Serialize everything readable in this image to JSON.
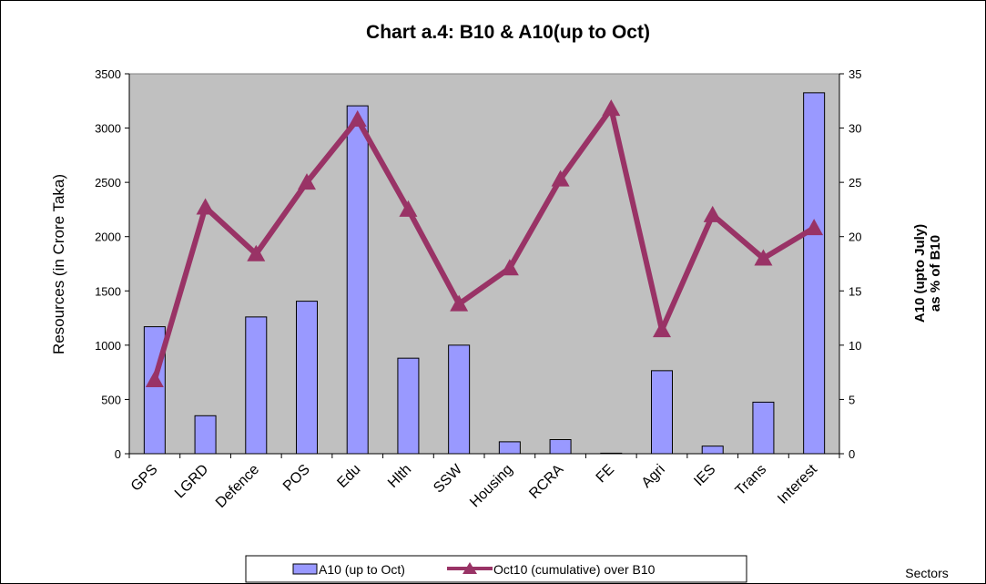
{
  "chart_data": {
    "type": "bar",
    "title": "Chart a.4: B10 & A10(up to Oct)",
    "xlabel": "Sectors",
    "ylabel": "Resources (in Crore Taka)",
    "y2label_line1": "A10 (upto July)",
    "y2label_line2": "as % of B10",
    "categories": [
      "GPS",
      "LGRD",
      "Defence",
      "POS",
      "Edu",
      "Hlth",
      "SSW",
      "Housing",
      "RCRA",
      "FE",
      "Agri",
      "IES",
      "Trans",
      "Interest"
    ],
    "ylim": [
      0,
      3500
    ],
    "yticks": [
      0,
      500,
      1000,
      1500,
      2000,
      2500,
      3000,
      3500
    ],
    "y2lim": [
      0,
      35
    ],
    "y2ticks": [
      0,
      5,
      10,
      15,
      20,
      25,
      30,
      35
    ],
    "grid": false,
    "legend": "bottom",
    "series": [
      {
        "name": "A10 (up to Oct)",
        "type": "bar",
        "axis": "left",
        "color": "#9999ff",
        "values": [
          1170,
          350,
          1260,
          1405,
          3205,
          880,
          1000,
          110,
          130,
          5,
          765,
          70,
          475,
          3325
        ]
      },
      {
        "name": "Oct10 (cumulative) over B10",
        "type": "line",
        "axis": "right",
        "color": "#993366",
        "values": [
          6.8,
          22.7,
          18.4,
          25.0,
          30.8,
          22.5,
          13.8,
          17.1,
          25.3,
          31.8,
          11.4,
          22.0,
          18.0,
          20.8
        ]
      }
    ],
    "plot_background": "#c0c0c0"
  }
}
